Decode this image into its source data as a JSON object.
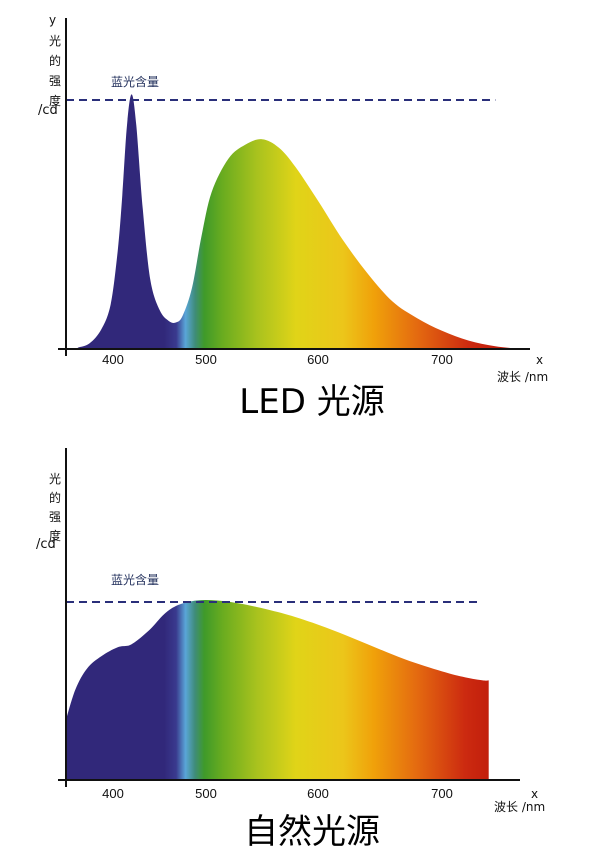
{
  "chart_data": [
    {
      "type": "area",
      "title": "LED 光源",
      "ylabel": [
        "y",
        "光",
        "的",
        "强",
        "度",
        "/cd"
      ],
      "xlabel_letter": "x",
      "xlabel": "波长 /nm",
      "x_ticks": [
        400,
        500,
        600,
        700
      ],
      "xlim": [
        360,
        760
      ],
      "ylim": [
        0,
        100
      ],
      "reference_line": {
        "label": "蓝光含量",
        "value": 89,
        "x_end": 740,
        "style": "dashed"
      },
      "series": [
        {
          "values": [
            [
              370,
              0.5
            ],
            [
              380,
              2
            ],
            [
              390,
              7
            ],
            [
              398,
              16
            ],
            [
              405,
              35
            ],
            [
              410,
              55
            ],
            [
              415,
              80
            ],
            [
              420,
              91
            ],
            [
              425,
              80
            ],
            [
              432,
              50
            ],
            [
              440,
              25
            ],
            [
              450,
              14
            ],
            [
              460,
              10
            ],
            [
              468,
              9.5
            ],
            [
              475,
              12
            ],
            [
              485,
              22
            ],
            [
              495,
              40
            ],
            [
              505,
              56
            ],
            [
              520,
              68
            ],
            [
              535,
              73
            ],
            [
              550,
              75
            ],
            [
              565,
              72
            ],
            [
              580,
              65
            ],
            [
              600,
              53
            ],
            [
              620,
              39
            ],
            [
              640,
              27
            ],
            [
              660,
              17
            ],
            [
              680,
              11
            ],
            [
              700,
              6.5
            ],
            [
              720,
              3
            ],
            [
              740,
              1
            ],
            [
              760,
              0
            ]
          ]
        }
      ],
      "fill": "visible-spectrum-gradient"
    },
    {
      "type": "area",
      "title": "自然光源",
      "ylabel": [
        "光",
        "的",
        "强",
        "度",
        "/cd"
      ],
      "xlabel_letter": "x",
      "xlabel": "波长 /nm",
      "x_ticks": [
        400,
        500,
        600,
        700
      ],
      "xlim": [
        360,
        760
      ],
      "ylim": [
        0,
        100
      ],
      "reference_line": {
        "label": "蓝光含量",
        "value": 59,
        "x_end": 730,
        "style": "dashed"
      },
      "series": [
        {
          "values": [
            [
              360,
              20
            ],
            [
              368,
              30
            ],
            [
              378,
              37
            ],
            [
              390,
              41
            ],
            [
              405,
              44
            ],
            [
              420,
              45
            ],
            [
              440,
              50
            ],
            [
              455,
              55
            ],
            [
              470,
              58
            ],
            [
              490,
              59.5
            ],
            [
              510,
              59.5
            ],
            [
              530,
              58.5
            ],
            [
              555,
              56.5
            ],
            [
              580,
              54
            ],
            [
              610,
              50
            ],
            [
              640,
              45
            ],
            [
              670,
              40
            ],
            [
              700,
              36
            ],
            [
              720,
              34
            ],
            [
              735,
              33
            ],
            [
              740,
              33
            ]
          ]
        }
      ],
      "fill": "visible-spectrum-gradient"
    }
  ],
  "colors": {
    "spectrum": [
      "#31287a",
      "#31287a",
      "#3a3a8e",
      "#5aa6d8",
      "#3f8c7a",
      "#3f9a2a",
      "#6aac1f",
      "#a8c21e",
      "#e0d418",
      "#ecc61a",
      "#f0a10a",
      "#e46a10",
      "#cc2a10",
      "#b81308"
    ],
    "dashed_line": "#2a2f7a",
    "axis": "#111111"
  }
}
